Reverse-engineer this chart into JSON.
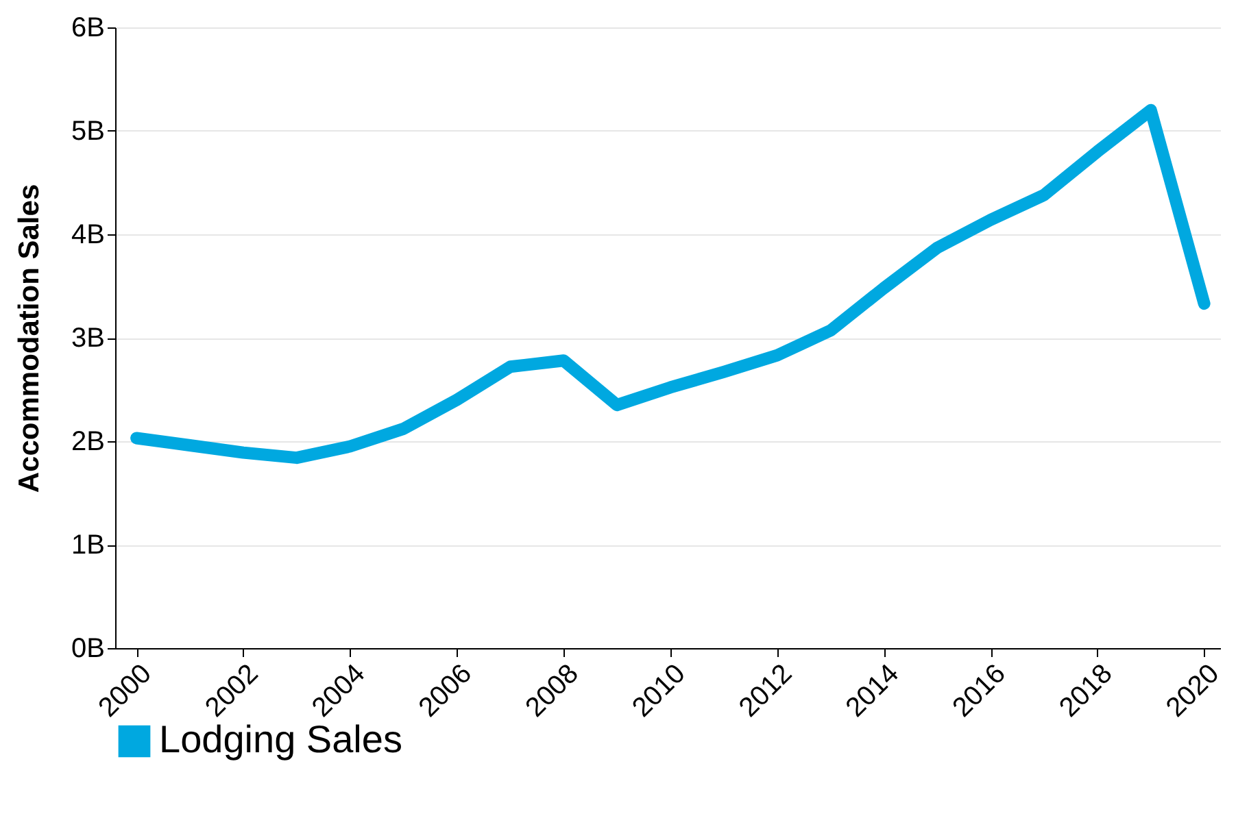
{
  "chart_data": {
    "type": "line",
    "ylabel": "Accommodation Sales",
    "x": [
      2000,
      2001,
      2002,
      2003,
      2004,
      2005,
      2006,
      2007,
      2008,
      2009,
      2010,
      2011,
      2012,
      2013,
      2014,
      2015,
      2016,
      2017,
      2018,
      2019,
      2020
    ],
    "series": [
      {
        "name": "Lodging Sales",
        "color": "#00a8e0",
        "values": [
          2.03,
          1.96,
          1.89,
          1.84,
          1.95,
          2.12,
          2.4,
          2.72,
          2.78,
          2.35,
          2.52,
          2.67,
          2.83,
          3.07,
          3.48,
          3.87,
          4.14,
          4.38,
          4.8,
          5.2,
          3.33
        ]
      }
    ],
    "xlim": [
      1999.6,
      2020.3
    ],
    "xticks": [
      2000,
      2002,
      2004,
      2006,
      2008,
      2010,
      2012,
      2014,
      2016,
      2018,
      2020
    ],
    "ylim": [
      0,
      6
    ],
    "yticks": [
      {
        "value": 0,
        "label": "0B"
      },
      {
        "value": 1,
        "label": "1B"
      },
      {
        "value": 2,
        "label": "2B"
      },
      {
        "value": 3,
        "label": "3B"
      },
      {
        "value": 4,
        "label": "4B"
      },
      {
        "value": 5,
        "label": "5B"
      },
      {
        "value": 6,
        "label": "6B"
      }
    ],
    "grid": "y",
    "legend": "bottom",
    "line_style": "solid"
  }
}
